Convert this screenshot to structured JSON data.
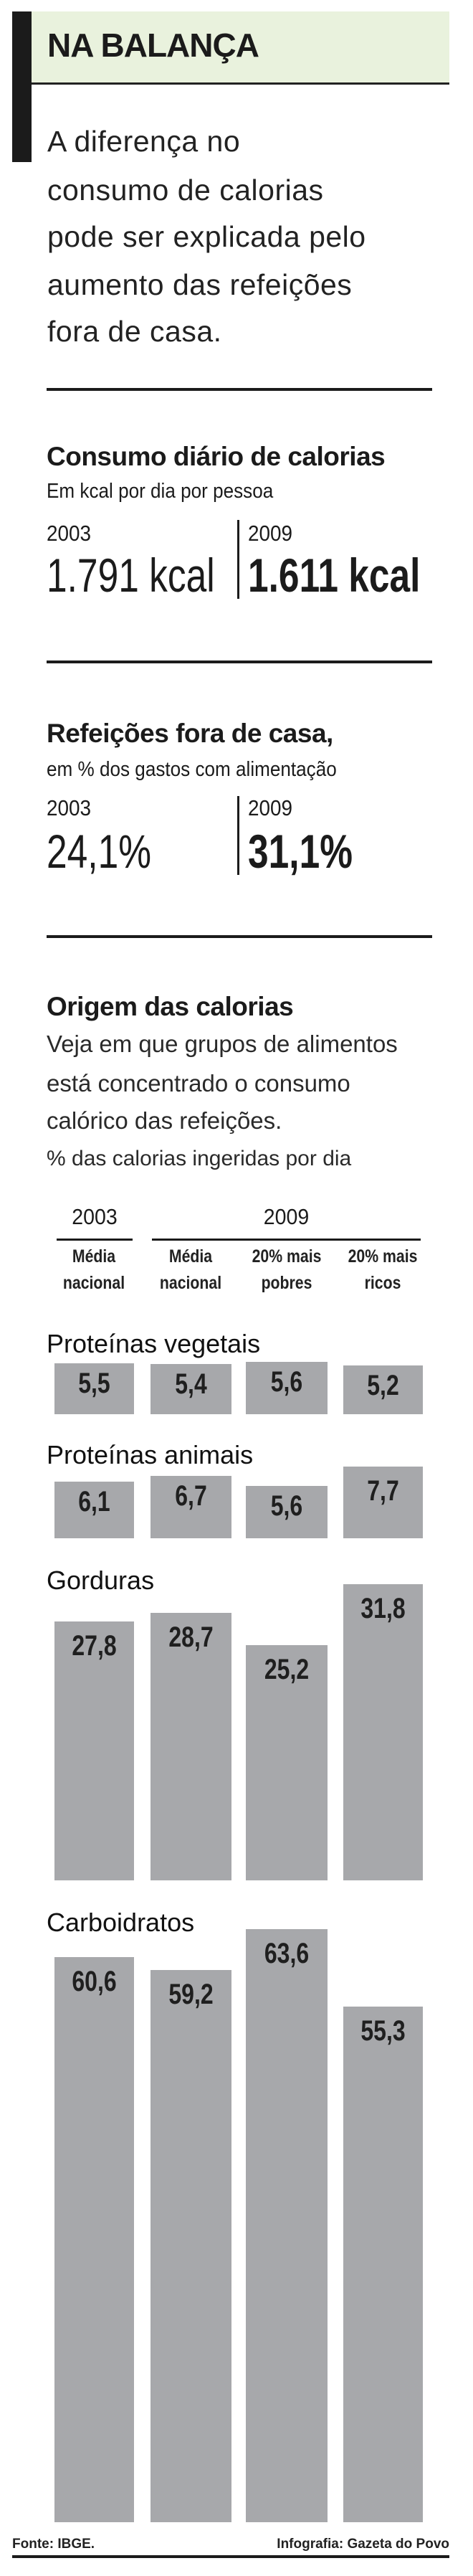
{
  "header": {
    "title": "NA BALANÇA",
    "lede_lines": [
      "A diferença no",
      "consumo de calorias",
      "pode ser explicada pelo",
      "aumento das refeições",
      "fora de casa."
    ],
    "accent_bg": "#e9f2dd"
  },
  "consumo": {
    "title": "Consumo diário de calorias",
    "subtitle": "Em kcal por dia por pessoa",
    "year_a": "2003",
    "value_a": "1.791 kcal",
    "year_b": "2009",
    "value_b": "1.611 kcal"
  },
  "refeicoes": {
    "title": "Refeições fora de casa,",
    "subtitle": "em % dos gastos com alimentação",
    "year_a": "2003",
    "value_a": "24,1%",
    "year_b": "2009",
    "value_b": "31,1%"
  },
  "origem": {
    "title": "Origem das calorias",
    "description_lines": [
      "Veja em que grupos de alimentos",
      "está concentrado o consumo",
      "calórico das refeições."
    ],
    "unit": "% das calorias ingeridas por dia"
  },
  "chart_data": {
    "type": "bar",
    "ylabel": "% das calorias ingeridas por dia",
    "year_headers": [
      "2003",
      "2009"
    ],
    "categories": [
      [
        "Média",
        "nacional"
      ],
      [
        "Média",
        "nacional"
      ],
      [
        "20% mais",
        "pobres"
      ],
      [
        "20% mais",
        "ricos"
      ]
    ],
    "bar_color": "#a7a8ab",
    "groups": [
      {
        "name": "Proteínas vegetais",
        "values": [
          5.5,
          5.4,
          5.6,
          5.2
        ],
        "labels": [
          "5,5",
          "5,4",
          "5,6",
          "5,2"
        ]
      },
      {
        "name": "Proteínas animais",
        "values": [
          6.1,
          6.7,
          5.6,
          7.7
        ],
        "labels": [
          "6,1",
          "6,7",
          "5,6",
          "7,7"
        ]
      },
      {
        "name": "Gorduras",
        "values": [
          27.8,
          28.7,
          25.2,
          31.8
        ],
        "labels": [
          "27,8",
          "28,7",
          "25,2",
          "31,8"
        ]
      },
      {
        "name": "Carboidratos",
        "values": [
          60.6,
          59.2,
          63.6,
          55.3
        ],
        "labels": [
          "60,6",
          "59,2",
          "63,6",
          "55,3"
        ]
      }
    ]
  },
  "footer": {
    "source": "Fonte: IBGE.",
    "credit": "Infografia: Gazeta do Povo"
  }
}
